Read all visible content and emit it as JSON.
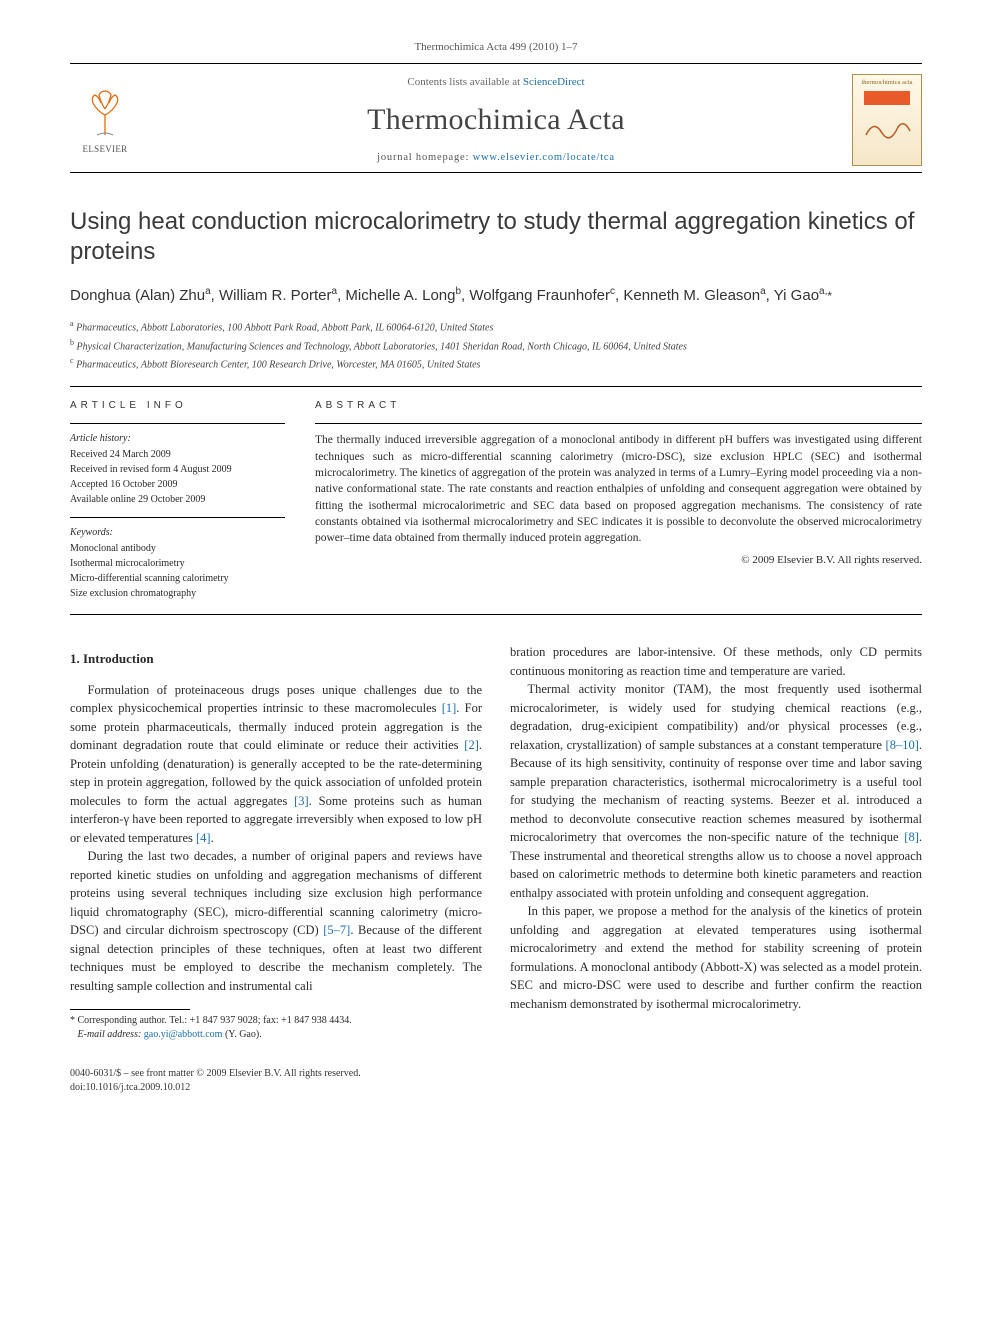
{
  "running_header": "Thermochimica Acta 499 (2010) 1–7",
  "masthead": {
    "publisher_label": "ELSEVIER",
    "contents_prefix": "Contents lists available at ",
    "contents_link": "ScienceDirect",
    "journal_name": "Thermochimica Acta",
    "homepage_prefix": "journal homepage: ",
    "homepage_url": "www.elsevier.com/locate/tca",
    "cover_label": "thermochimica acta"
  },
  "title": "Using heat conduction microcalorimetry to study thermal aggregation kinetics of proteins",
  "authors_html": "Donghua (Alan) Zhu<sup>a</sup>, William R. Porter<sup>a</sup>, Michelle A. Long<sup>b</sup>, Wolfgang Fraunhofer<sup>c</sup>, Kenneth M. Gleason<sup>a</sup>, Yi Gao<sup>a,</sup><span class='corr'>*</span>",
  "affiliations": [
    {
      "sup": "a",
      "text": "Pharmaceutics, Abbott Laboratories, 100 Abbott Park Road, Abbott Park, IL 60064-6120, United States"
    },
    {
      "sup": "b",
      "text": "Physical Characterization, Manufacturing Sciences and Technology, Abbott Laboratories, 1401 Sheridan Road, North Chicago, IL 60064, United States"
    },
    {
      "sup": "c",
      "text": "Pharmaceutics, Abbott Bioresearch Center, 100 Research Drive, Worcester, MA 01605, United States"
    }
  ],
  "info_heading": "article info",
  "abstract_heading": "abstract",
  "history_label": "Article history:",
  "history": [
    "Received 24 March 2009",
    "Received in revised form 4 August 2009",
    "Accepted 16 October 2009",
    "Available online 29 October 2009"
  ],
  "keywords_label": "Keywords:",
  "keywords": [
    "Monoclonal antibody",
    "Isothermal microcalorimetry",
    "Micro-differential scanning calorimetry",
    "Size exclusion chromatography"
  ],
  "abstract": "The thermally induced irreversible aggregation of a monoclonal antibody in different pH buffers was investigated using different techniques such as micro-differential scanning calorimetry (micro-DSC), size exclusion HPLC (SEC) and isothermal microcalorimetry. The kinetics of aggregation of the protein was analyzed in terms of a Lumry–Eyring model proceeding via a non-native conformational state. The rate constants and reaction enthalpies of unfolding and consequent aggregation were obtained by fitting the isothermal microcalorimetric and SEC data based on proposed aggregation mechanisms. The consistency of rate constants obtained via isothermal microcalorimetry and SEC indicates it is possible to deconvolute the observed microcalorimetry power–time data obtained from thermally induced protein aggregation.",
  "copyright": "© 2009 Elsevier B.V. All rights reserved.",
  "section1": "1.  Introduction",
  "p1": "Formulation of proteinaceous drugs poses unique challenges due to the complex physicochemical properties intrinsic to these macromolecules ",
  "p1_ref1": "[1]",
  "p1b": ". For some protein pharmaceuticals, thermally induced protein aggregation is the dominant degradation route that could eliminate or reduce their activities ",
  "p1_ref2": "[2]",
  "p1c": ". Protein unfolding (denaturation) is generally accepted to be the rate-determining step in protein aggregation, followed by the quick association of unfolded protein molecules to form the actual aggregates ",
  "p1_ref3": "[3]",
  "p1d": ". Some proteins such as human interferon-γ have been reported to aggregate irreversibly when exposed to low pH or elevated temperatures ",
  "p1_ref4": "[4]",
  "p1e": ".",
  "p2": "During the last two decades, a number of original papers and reviews have reported kinetic studies on unfolding and aggregation mechanisms of different proteins using several techniques including size exclusion high performance liquid chromatography (SEC), micro-differential scanning calorimetry (micro-DSC) and circular dichroism spectroscopy (CD) ",
  "p2_ref": "[5–7]",
  "p2b": ". Because of the different signal detection principles of these techniques, often at least two different techniques must be employed to describe the mechanism completely. The resulting sample collection and instrumental cali",
  "p3_cont": "bration procedures are labor-intensive. Of these methods, only CD permits continuous monitoring as reaction time and temperature are varied.",
  "p4": "Thermal activity monitor (TAM), the most frequently used isothermal microcalorimeter, is widely used for studying chemical reactions (e.g., degradation, drug-exicipient compatibility) and/or physical processes (e.g., relaxation, crystallization) of sample substances at a constant temperature ",
  "p4_ref1": "[8–10]",
  "p4b": ". Because of its high sensitivity, continuity of response over time and labor saving sample preparation characteristics, isothermal microcalorimetry is a useful tool for studying the mechanism of reacting systems. Beezer et al. introduced a method to deconvolute consecutive reaction schemes measured by isothermal microcalorimetry that overcomes the non-specific nature of the technique ",
  "p4_ref2": "[8]",
  "p4c": ". These instrumental and theoretical strengths allow us to choose a novel approach based on calorimetric methods to determine both kinetic parameters and reaction enthalpy associated with protein unfolding and consequent aggregation.",
  "p5": "In this paper, we propose a method for the analysis of the kinetics of protein unfolding and aggregation at elevated temperatures using isothermal microcalorimetry and extend the method for stability screening of protein formulations. A monoclonal antibody (Abbott-X) was selected as a model protein. SEC and micro-DSC were used to describe and further confirm the reaction mechanism demonstrated by isothermal microcalorimetry.",
  "footnote": {
    "marker": "*",
    "line1": "Corresponding author. Tel.: +1 847 937 9028; fax: +1 847 938 4434.",
    "email_label": "E-mail address: ",
    "email": "gao.yi@abbott.com",
    "email_tail": " (Y. Gao)."
  },
  "doi": {
    "line1": "0040-6031/$ – see front matter © 2009 Elsevier B.V. All rights reserved.",
    "line2": "doi:10.1016/j.tca.2009.10.012"
  },
  "colors": {
    "link": "#1b6fb0",
    "elsevier_orange": "#eb6b0d",
    "text": "#2a2a2a"
  }
}
